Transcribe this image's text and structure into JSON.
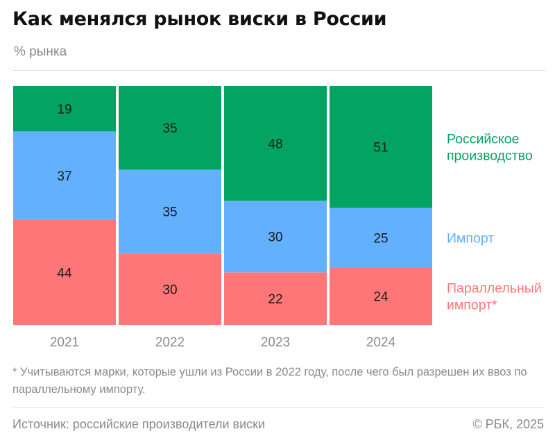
{
  "header": {
    "title": "Как менялся рынок виски в России",
    "subtitle": "% рынка"
  },
  "chart_data": {
    "type": "bar",
    "stacked": true,
    "categories": [
      "2021",
      "2022",
      "2023",
      "2024"
    ],
    "series": [
      {
        "name": "Параллельный импорт*",
        "color": "#fe7677",
        "values": [
          44,
          30,
          22,
          24
        ]
      },
      {
        "name": "Импорт",
        "color": "#62b0fe",
        "values": [
          37,
          35,
          30,
          25
        ]
      },
      {
        "name": "Российское производство",
        "color": "#03a462",
        "values": [
          19,
          35,
          48,
          51
        ]
      }
    ],
    "legend_lines": [
      {
        "series": 2,
        "lines": [
          "Российское",
          "производство"
        ]
      },
      {
        "series": 1,
        "lines": [
          "Импорт"
        ]
      },
      {
        "series": 0,
        "lines": [
          "Параллельный",
          "импорт*"
        ]
      }
    ],
    "ylim": [
      0,
      100
    ],
    "legend_position": "right"
  },
  "footer": {
    "footnote": "* Учитываются марки, которые ушли из России в 2022 году, после чего был разрешен их ввоз по параллельному импорту.",
    "source": "Источник: российские производители виски",
    "copyright": "© РБК, 2025"
  }
}
